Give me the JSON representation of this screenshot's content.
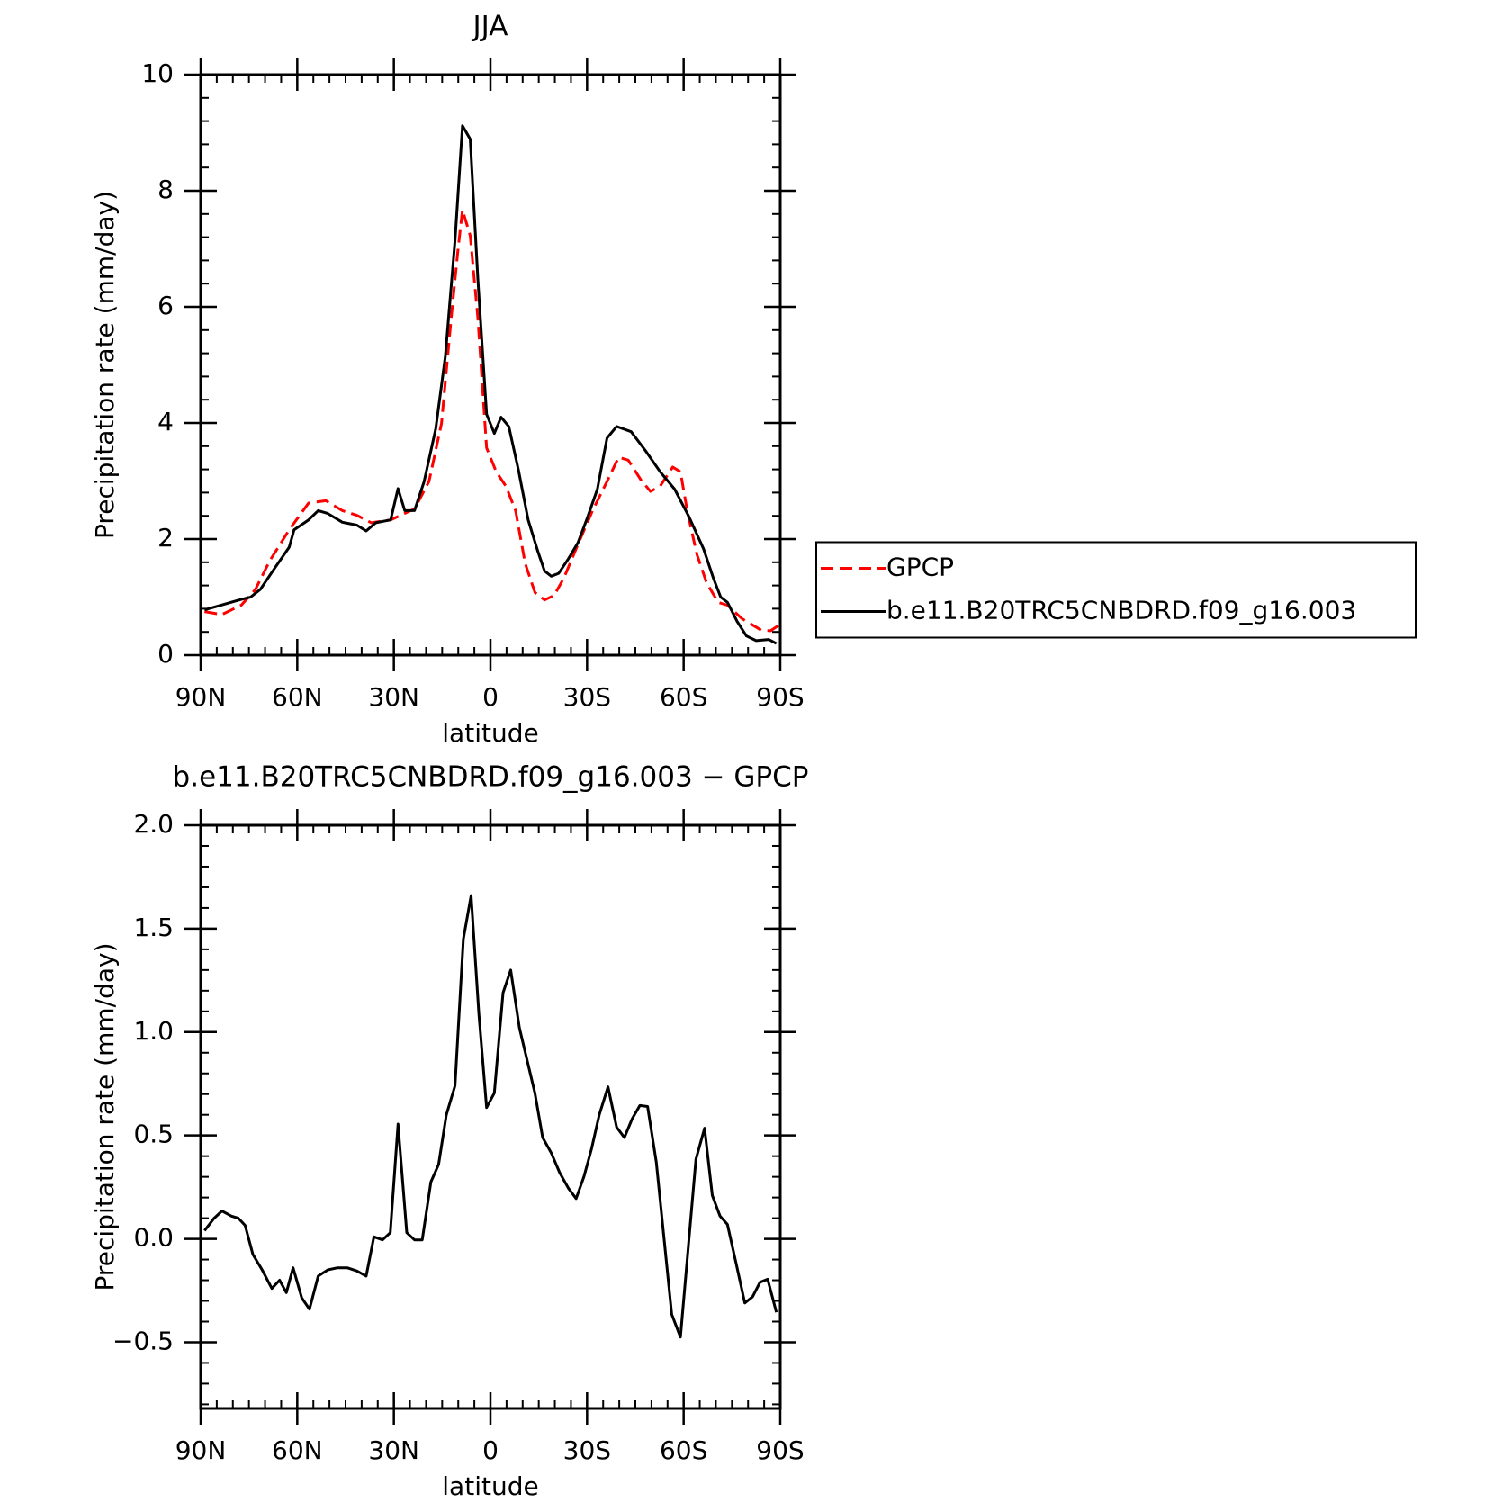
{
  "chart_data": [
    {
      "type": "line",
      "title": "JJA",
      "ylabel": "Precipitation rate (mm/day)",
      "xlabel": "latitude",
      "xlim": [
        90,
        -90
      ],
      "ylim": [
        0,
        10
      ],
      "xticks": [
        {
          "value": 90,
          "label": "90N"
        },
        {
          "value": 60,
          "label": "60N"
        },
        {
          "value": 30,
          "label": "30N"
        },
        0,
        {
          "value": -30,
          "label": "30S"
        },
        {
          "value": -60,
          "label": "60S"
        },
        {
          "value": -90,
          "label": "90S"
        }
      ],
      "yticks": [
        0,
        2,
        4,
        6,
        8,
        10
      ],
      "legend": "right",
      "series": [
        {
          "name": "GPCP",
          "color": "#ff0000",
          "dashed": true,
          "x": [
            88.8,
            83.4,
            77.4,
            73,
            68.5,
            62.5,
            56.5,
            51.1,
            46,
            41.5,
            37,
            31,
            23.6,
            19.1,
            15.2,
            12.2,
            10.1,
            8.7,
            6.3,
            3.9,
            1.2,
            -1.8,
            -4.8,
            -7.8,
            -10.8,
            -13.8,
            -16.8,
            -19.8,
            -22.8,
            -27.2,
            -31.7,
            -36.2,
            -39.8,
            -42.8,
            -46.7,
            -49.7,
            -52.7,
            -56.6,
            -59,
            -61.1,
            -64.1,
            -67.1,
            -70.7,
            -73.6,
            -78.1,
            -84.1,
            -87,
            -90
          ],
          "values": [
            0.75,
            0.7,
            0.86,
            1.13,
            1.63,
            2.16,
            2.62,
            2.66,
            2.49,
            2.41,
            2.28,
            2.33,
            2.52,
            2.99,
            3.99,
            5.81,
            6.98,
            7.67,
            7.23,
            5.81,
            3.57,
            3.16,
            2.91,
            2.49,
            1.58,
            1.08,
            0.95,
            1.03,
            1.33,
            1.91,
            2.49,
            2.99,
            3.41,
            3.36,
            3.02,
            2.82,
            2.91,
            3.24,
            3.16,
            2.49,
            1.74,
            1.25,
            0.91,
            0.86,
            0.63,
            0.43,
            0.42,
            0.53
          ]
        },
        {
          "name": "b.e11.B20TRC5CNBDRD.f09_g16.003",
          "color": "#000000",
          "dashed": false,
          "x": [
            88.8,
            77.4,
            74.5,
            71.5,
            67,
            62.5,
            61,
            56.5,
            53.5,
            50.5,
            46,
            41.5,
            38.6,
            35.6,
            31,
            28.7,
            26.6,
            23.6,
            20.6,
            17,
            14,
            11,
            8.7,
            6.3,
            3.9,
            1.2,
            -1.2,
            -3.3,
            -5.7,
            -8.7,
            -11.7,
            -14.7,
            -16.8,
            -18.9,
            -21.2,
            -24.2,
            -27.2,
            -30.2,
            -33.2,
            -36.2,
            -39.2,
            -43.7,
            -48.2,
            -52.7,
            -57.2,
            -61.7,
            -66.2,
            -69.2,
            -71.5,
            -73.6,
            -76.6,
            -79.5,
            -82.5,
            -86.4,
            -88.8
          ],
          "values": [
            0.78,
            0.96,
            1.0,
            1.13,
            1.5,
            1.86,
            2.16,
            2.33,
            2.49,
            2.44,
            2.29,
            2.24,
            2.14,
            2.28,
            2.33,
            2.87,
            2.49,
            2.49,
            2.99,
            3.9,
            5.15,
            7.14,
            9.12,
            8.89,
            6.48,
            4.15,
            3.82,
            4.1,
            3.94,
            3.19,
            2.33,
            1.79,
            1.45,
            1.36,
            1.41,
            1.66,
            1.94,
            2.38,
            2.86,
            3.74,
            3.94,
            3.85,
            3.52,
            3.16,
            2.86,
            2.38,
            1.83,
            1.33,
            1.0,
            0.91,
            0.58,
            0.33,
            0.25,
            0.27,
            0.2
          ]
        }
      ]
    },
    {
      "type": "line",
      "title": "b.e11.B20TRC5CNBDRD.f09_g16.003 − GPCP",
      "ylabel": "Precipitation rate (mm/day)",
      "xlabel": "latitude",
      "xlim": [
        90,
        -90
      ],
      "ylim": [
        -0.82,
        2.0
      ],
      "xticks": [
        {
          "value": 90,
          "label": "90N"
        },
        {
          "value": 60,
          "label": "60N"
        },
        {
          "value": 30,
          "label": "30N"
        },
        0,
        {
          "value": -30,
          "label": "30S"
        },
        {
          "value": -60,
          "label": "60S"
        },
        {
          "value": -90,
          "label": "90S"
        }
      ],
      "yticks": [
        {
          "value": -0.5,
          "label": "−0.5"
        },
        {
          "value": 0,
          "label": "0.0"
        },
        0.5,
        {
          "value": 1,
          "label": "1.0"
        },
        1.5,
        {
          "value": 2,
          "label": "2.0"
        }
      ],
      "color": "#000000",
      "x": [
        88.8,
        85.8,
        83.4,
        80.4,
        78.3,
        76.2,
        73.8,
        70.9,
        67.9,
        65.5,
        63.4,
        61.3,
        58.6,
        56.2,
        53.5,
        50.5,
        47.5,
        44.5,
        41.5,
        38.6,
        36.2,
        33.5,
        31.1,
        28.7,
        26,
        23.6,
        21.2,
        18.5,
        16.1,
        13.7,
        11,
        8.4,
        6,
        3.6,
        1.2,
        -1.2,
        -3.9,
        -6.3,
        -9,
        -13.8,
        -16.2,
        -18.9,
        -21.5,
        -24.2,
        -26.6,
        -29,
        -31.4,
        -33.8,
        -36.5,
        -39.2,
        -41.6,
        -44,
        -46.4,
        -48.8,
        -51.5,
        -56.3,
        -59,
        -63.8,
        -66.5,
        -68.9,
        -71.3,
        -73.6,
        -76.3,
        -79,
        -81.4,
        -83.7,
        -86.1,
        -88.8
      ],
      "values": [
        0.04,
        0.1,
        0.135,
        0.11,
        0.1,
        0.065,
        -0.075,
        -0.15,
        -0.24,
        -0.2,
        -0.26,
        -0.14,
        -0.285,
        -0.34,
        -0.18,
        -0.15,
        -0.14,
        -0.14,
        -0.155,
        -0.18,
        0.01,
        -0.005,
        0.03,
        0.555,
        0.03,
        -0.005,
        -0.005,
        0.275,
        0.36,
        0.6,
        0.74,
        1.45,
        1.66,
        1.09,
        0.635,
        0.705,
        1.19,
        1.3,
        1.02,
        0.705,
        0.49,
        0.415,
        0.32,
        0.245,
        0.195,
        0.3,
        0.435,
        0.6,
        0.735,
        0.54,
        0.49,
        0.58,
        0.645,
        0.64,
        0.37,
        -0.365,
        -0.475,
        0.385,
        0.535,
        0.21,
        0.11,
        0.07,
        -0.12,
        -0.31,
        -0.28,
        -0.21,
        -0.195,
        -0.355
      ]
    }
  ]
}
